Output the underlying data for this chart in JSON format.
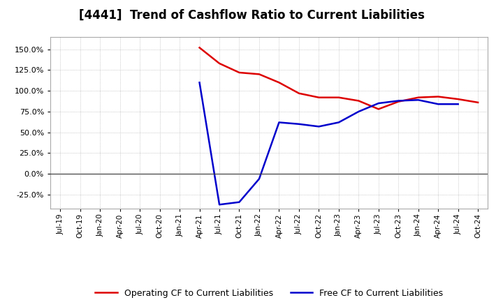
{
  "title": "[4441]  Trend of Cashflow Ratio to Current Liabilities",
  "title_fontsize": 12,
  "background_color": "#ffffff",
  "plot_bg_color": "#ffffff",
  "grid_color": "#aaaaaa",
  "operating_cf": {
    "label": "Operating CF to Current Liabilities",
    "color": "#dd0000",
    "values": [
      null,
      null,
      null,
      null,
      null,
      null,
      null,
      1.52,
      1.33,
      1.22,
      1.2,
      1.1,
      0.97,
      0.92,
      0.92,
      0.88,
      0.78,
      0.87,
      0.92,
      0.93,
      0.9,
      0.86
    ]
  },
  "free_cf": {
    "label": "Free CF to Current Liabilities",
    "color": "#0000cc",
    "values": [
      null,
      null,
      null,
      null,
      null,
      null,
      null,
      1.1,
      -0.37,
      -0.34,
      -0.06,
      0.62,
      0.6,
      0.57,
      0.62,
      0.75,
      0.85,
      0.88,
      0.89,
      0.84,
      0.84,
      null
    ]
  },
  "ylim": [
    -0.42,
    1.65
  ],
  "yticks": [
    -0.25,
    0.0,
    0.25,
    0.5,
    0.75,
    1.0,
    1.25,
    1.5
  ],
  "xlabel_dates": [
    "Jul-19",
    "Oct-19",
    "Jan-20",
    "Apr-20",
    "Jul-20",
    "Oct-20",
    "Jan-21",
    "Apr-21",
    "Jul-21",
    "Oct-21",
    "Jan-22",
    "Apr-22",
    "Jul-22",
    "Oct-22",
    "Jan-23",
    "Apr-23",
    "Jul-23",
    "Oct-23",
    "Jan-24",
    "Apr-24",
    "Jul-24",
    "Oct-24"
  ],
  "linewidth": 1.8
}
